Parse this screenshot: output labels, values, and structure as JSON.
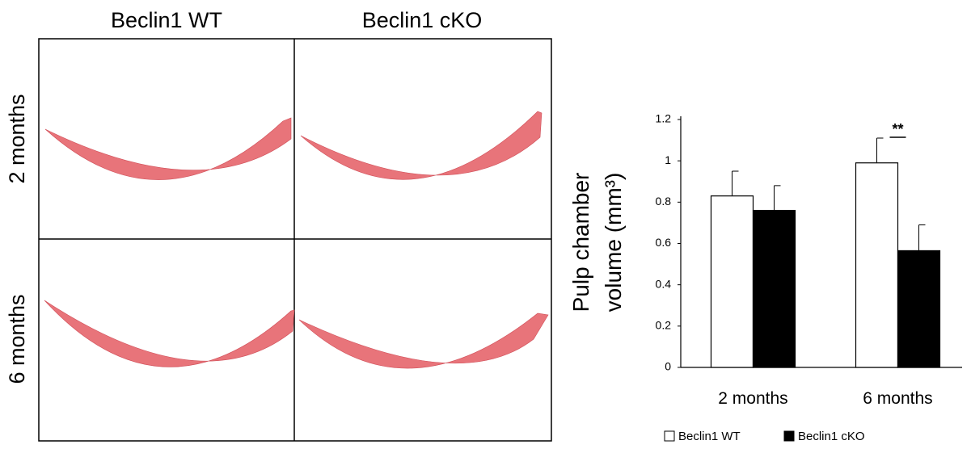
{
  "image_panel": {
    "columns": [
      "Beclin1 WT",
      "Beclin1 cKO"
    ],
    "rows": [
      "2 months",
      "6 months"
    ]
  },
  "chart_data": {
    "type": "bar",
    "ylabel_lines": [
      "Pulp chamber",
      "volume (mm³)"
    ],
    "categories": [
      "2 months",
      "6 months"
    ],
    "series": [
      {
        "name": "Beclin1 WT",
        "color": "#ffffff",
        "values": [
          0.83,
          0.99
        ],
        "errors": [
          0.12,
          0.12
        ]
      },
      {
        "name": "Beclin1 cKO",
        "color": "#000000",
        "values": [
          0.76,
          0.565
        ],
        "errors": [
          0.12,
          0.125
        ]
      }
    ],
    "ylim": [
      0,
      1.2
    ],
    "yticks": [
      0,
      0.2,
      0.4,
      0.6,
      0.8,
      1,
      1.2
    ],
    "annotation": "**"
  }
}
